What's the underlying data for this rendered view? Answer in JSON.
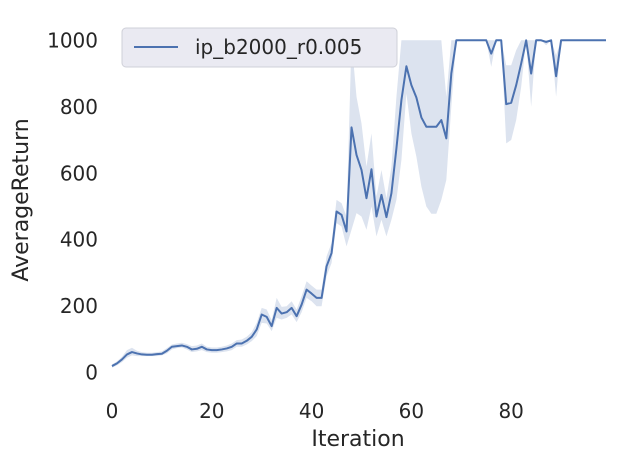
{
  "chart_data": {
    "type": "line",
    "xlabel": "Iteration",
    "ylabel": "AverageReturn",
    "xlim": [
      0,
      99
    ],
    "ylim": [
      -40,
      1040
    ],
    "xticks": [
      0,
      20,
      40,
      60,
      80
    ],
    "yticks": [
      0,
      200,
      400,
      600,
      800,
      1000
    ],
    "grid": false,
    "legend_position": "top-left",
    "series": [
      {
        "name": "ip_b2000_r0.005",
        "color": "#4c72b0",
        "band_color": "#dce3ef",
        "points": [
          [
            0,
            20,
            15,
            25
          ],
          [
            1,
            28,
            22,
            34
          ],
          [
            2,
            40,
            32,
            48
          ],
          [
            3,
            55,
            45,
            68
          ],
          [
            4,
            62,
            52,
            75
          ],
          [
            5,
            58,
            50,
            66
          ],
          [
            6,
            55,
            50,
            62
          ],
          [
            7,
            54,
            50,
            60
          ],
          [
            8,
            54,
            50,
            60
          ],
          [
            9,
            56,
            50,
            62
          ],
          [
            10,
            57,
            52,
            64
          ],
          [
            11,
            66,
            58,
            74
          ],
          [
            12,
            78,
            70,
            85
          ],
          [
            13,
            80,
            74,
            88
          ],
          [
            14,
            82,
            76,
            90
          ],
          [
            15,
            78,
            70,
            86
          ],
          [
            16,
            70,
            62,
            80
          ],
          [
            17,
            72,
            64,
            82
          ],
          [
            18,
            78,
            68,
            88
          ],
          [
            19,
            70,
            62,
            78
          ],
          [
            20,
            68,
            60,
            76
          ],
          [
            21,
            68,
            60,
            76
          ],
          [
            22,
            70,
            62,
            78
          ],
          [
            23,
            73,
            64,
            82
          ],
          [
            24,
            78,
            68,
            88
          ],
          [
            25,
            88,
            78,
            98
          ],
          [
            26,
            88,
            78,
            100
          ],
          [
            27,
            96,
            85,
            108
          ],
          [
            28,
            108,
            95,
            122
          ],
          [
            29,
            130,
            110,
            150
          ],
          [
            30,
            175,
            150,
            195
          ],
          [
            31,
            168,
            148,
            190
          ],
          [
            32,
            140,
            125,
            158
          ],
          [
            33,
            195,
            165,
            225
          ],
          [
            34,
            178,
            160,
            198
          ],
          [
            35,
            182,
            165,
            200
          ],
          [
            36,
            195,
            175,
            215
          ],
          [
            37,
            170,
            152,
            190
          ],
          [
            38,
            205,
            182,
            230
          ],
          [
            39,
            250,
            225,
            275
          ],
          [
            40,
            238,
            215,
            262
          ],
          [
            41,
            225,
            200,
            250
          ],
          [
            42,
            225,
            200,
            250
          ],
          [
            43,
            320,
            290,
            350
          ],
          [
            44,
            360,
            330,
            390
          ],
          [
            45,
            485,
            450,
            520
          ],
          [
            46,
            475,
            440,
            510
          ],
          [
            47,
            425,
            380,
            470
          ],
          [
            48,
            738,
            430,
            1000
          ],
          [
            49,
            655,
            480,
            830
          ],
          [
            50,
            610,
            470,
            750
          ],
          [
            51,
            525,
            430,
            620
          ],
          [
            52,
            612,
            500,
            720
          ],
          [
            53,
            470,
            410,
            530
          ],
          [
            54,
            535,
            460,
            610
          ],
          [
            55,
            468,
            410,
            525
          ],
          [
            56,
            540,
            460,
            620
          ],
          [
            57,
            675,
            520,
            830
          ],
          [
            58,
            820,
            640,
            1000
          ],
          [
            59,
            922,
            840,
            1000
          ],
          [
            60,
            865,
            720,
            1000
          ],
          [
            61,
            828,
            650,
            1000
          ],
          [
            62,
            768,
            560,
            1000
          ],
          [
            63,
            740,
            500,
            1000
          ],
          [
            64,
            740,
            478,
            1000
          ],
          [
            65,
            740,
            478,
            1000
          ],
          [
            66,
            760,
            520,
            1000
          ],
          [
            67,
            705,
            580,
            830
          ],
          [
            68,
            900,
            800,
            1000
          ],
          [
            69,
            1000,
            1000,
            1000
          ],
          [
            70,
            1000,
            1000,
            1000
          ],
          [
            71,
            1000,
            1000,
            1000
          ],
          [
            72,
            1000,
            1000,
            1000
          ],
          [
            73,
            1000,
            1000,
            1000
          ],
          [
            74,
            1000,
            1000,
            1000
          ],
          [
            75,
            1000,
            1000,
            1000
          ],
          [
            76,
            960,
            920,
            1000
          ],
          [
            77,
            1000,
            1000,
            1000
          ],
          [
            78,
            1000,
            1000,
            1000
          ],
          [
            79,
            808,
            690,
            925
          ],
          [
            80,
            812,
            700,
            925
          ],
          [
            81,
            865,
            760,
            970
          ],
          [
            82,
            930,
            860,
            1000
          ],
          [
            83,
            1000,
            1000,
            1000
          ],
          [
            84,
            900,
            800,
            1000
          ],
          [
            85,
            1000,
            1000,
            1000
          ],
          [
            86,
            1000,
            1000,
            1000
          ],
          [
            87,
            995,
            985,
            1000
          ],
          [
            88,
            1000,
            1000,
            1000
          ],
          [
            89,
            892,
            830,
            955
          ],
          [
            90,
            1000,
            1000,
            1000
          ],
          [
            91,
            1000,
            1000,
            1000
          ],
          [
            92,
            1000,
            1000,
            1000
          ],
          [
            93,
            1000,
            1000,
            1000
          ],
          [
            94,
            1000,
            1000,
            1000
          ],
          [
            95,
            1000,
            1000,
            1000
          ],
          [
            96,
            1000,
            1000,
            1000
          ],
          [
            97,
            1000,
            1000,
            1000
          ],
          [
            98,
            1000,
            1000,
            1000
          ],
          [
            99,
            1000,
            1000,
            1000
          ]
        ]
      }
    ]
  }
}
